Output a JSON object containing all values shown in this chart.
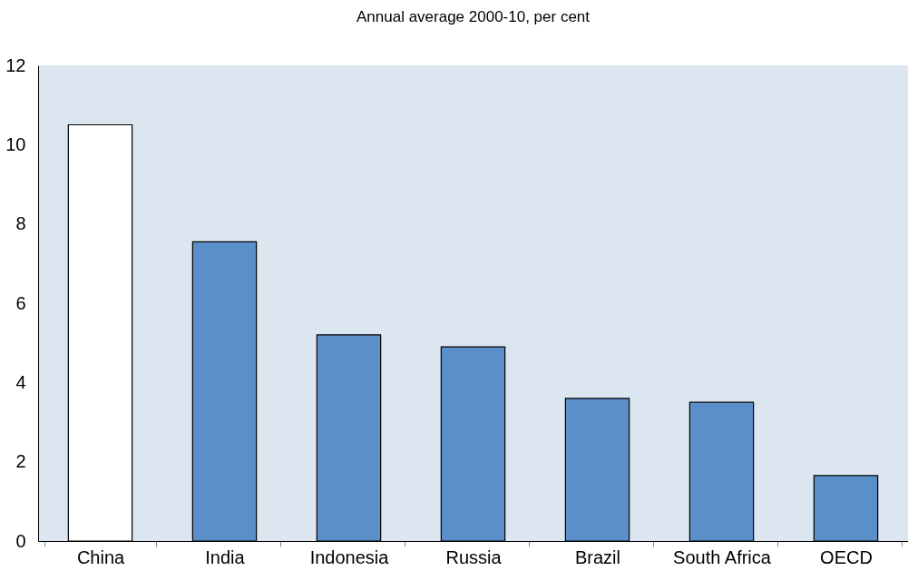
{
  "chart_data": {
    "type": "bar",
    "title": "Annual average 2000-10, per cent",
    "categories": [
      "China",
      "India",
      "Indonesia",
      "Russia",
      "Brazil",
      "South Africa",
      "OECD"
    ],
    "values": [
      10.5,
      7.55,
      5.2,
      4.9,
      3.6,
      3.5,
      1.65
    ],
    "colors": [
      "#ffffff",
      "#5b8fc9",
      "#5b8fc9",
      "#5b8fc9",
      "#5b8fc9",
      "#5b8fc9",
      "#5b8fc9"
    ],
    "ylim": [
      0,
      12
    ],
    "yticks": [
      0,
      2,
      4,
      6,
      8,
      10,
      12
    ],
    "grid": false
  }
}
